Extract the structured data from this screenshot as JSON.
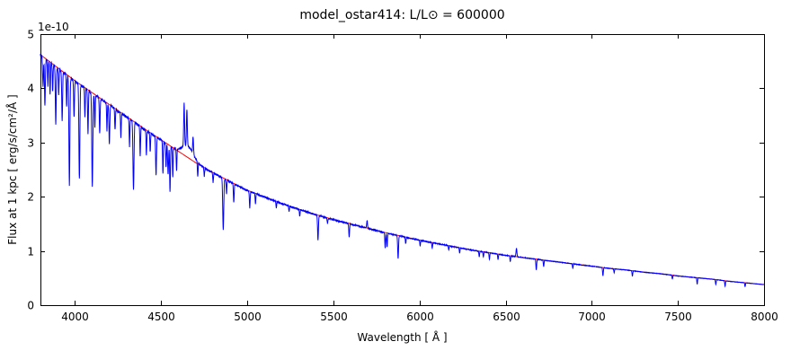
{
  "chart_data": {
    "type": "line",
    "title": "model_ostar414: L/L⊙ = 600000",
    "xlabel": "Wavelength [ Å ]",
    "ylabel": "Flux at 1 kpc [ erg/s/cm²/Å ]",
    "y_offset_label": "1e-10",
    "x_range": [
      3800,
      8000
    ],
    "y_range": [
      0,
      5
    ],
    "x_ticks": [
      4000,
      4500,
      5000,
      5500,
      6000,
      6500,
      7000,
      7500,
      8000
    ],
    "y_ticks": [
      0,
      1,
      2,
      3,
      4,
      5
    ],
    "grid": false,
    "legend": null,
    "colors": {
      "spectrum": "#0000ff",
      "continuum_fit": "#ff0000",
      "axes": "#000000",
      "background": "#ffffff"
    },
    "series": [
      {
        "name": "spectrum",
        "color_key": "spectrum",
        "description": "observed/model spectrum with absorption and emission lines"
      },
      {
        "name": "continuum_fit",
        "color_key": "continuum_fit",
        "description": "smooth continuum model"
      }
    ],
    "continuum": {
      "x": [
        3800,
        3900,
        4000,
        4100,
        4200,
        4300,
        4400,
        4500,
        4600,
        4700,
        4800,
        4900,
        5000,
        5100,
        5200,
        5300,
        5400,
        5500,
        5600,
        5700,
        5800,
        5900,
        6000,
        6100,
        6200,
        6300,
        6400,
        6500,
        6600,
        6700,
        6800,
        6900,
        7000,
        7100,
        7200,
        7300,
        7400,
        7500,
        7600,
        7700,
        7800,
        7900,
        8000
      ],
      "y": [
        4.62,
        4.38,
        4.14,
        3.92,
        3.7,
        3.48,
        3.26,
        3.05,
        2.84,
        2.63,
        2.45,
        2.28,
        2.12,
        2.0,
        1.88,
        1.77,
        1.67,
        1.58,
        1.5,
        1.42,
        1.34,
        1.27,
        1.2,
        1.14,
        1.08,
        1.02,
        0.97,
        0.92,
        0.88,
        0.84,
        0.8,
        0.76,
        0.72,
        0.68,
        0.65,
        0.61,
        0.58,
        0.54,
        0.51,
        0.48,
        0.44,
        0.41,
        0.38
      ]
    },
    "emission_bump": {
      "center": 4655,
      "sigma": 32,
      "amplitude": 0.22
    },
    "spectral_lines": [
      [
        3815,
        -0.55,
        2.5
      ],
      [
        3826,
        -0.85,
        2.5
      ],
      [
        3843,
        -0.45,
        2.0
      ],
      [
        3856,
        -0.6,
        2.0
      ],
      [
        3871,
        -0.5,
        2.0
      ],
      [
        3889,
        -1.05,
        2.5
      ],
      [
        3906,
        -0.45,
        2.0
      ],
      [
        3926,
        -0.9,
        2.5
      ],
      [
        3952,
        -0.6,
        2.0
      ],
      [
        3968,
        -2.0,
        2.8
      ],
      [
        3995,
        -0.7,
        2.2
      ],
      [
        4026,
        -1.75,
        2.8
      ],
      [
        4058,
        -0.55,
        2.0
      ],
      [
        4076,
        -0.8,
        2.2
      ],
      [
        4101,
        -1.7,
        3.0
      ],
      [
        4116,
        -0.6,
        2.0
      ],
      [
        4144,
        -0.65,
        2.2
      ],
      [
        4186,
        -0.5,
        2.0
      ],
      [
        4200,
        -0.7,
        2.5
      ],
      [
        4233,
        -0.4,
        2.0
      ],
      [
        4267,
        -0.45,
        2.0
      ],
      [
        4317,
        -0.5,
        2.0
      ],
      [
        4340,
        -1.25,
        3.0
      ],
      [
        4379,
        -0.55,
        2.0
      ],
      [
        4415,
        -0.45,
        2.0
      ],
      [
        4437,
        -0.35,
        2.0
      ],
      [
        4471,
        -0.7,
        2.5
      ],
      [
        4511,
        -0.6,
        2.0
      ],
      [
        4529,
        -0.45,
        2.0
      ],
      [
        4541,
        -0.55,
        2.5
      ],
      [
        4552,
        -0.85,
        2.2
      ],
      [
        4568,
        -0.55,
        2.0
      ],
      [
        4590,
        -0.4,
        2.0
      ],
      [
        4634,
        0.78,
        2.5
      ],
      [
        4650,
        0.66,
        2.5
      ],
      [
        4686,
        0.32,
        2.5
      ],
      [
        4713,
        -0.28,
        2.0
      ],
      [
        4751,
        -0.15,
        2.0
      ],
      [
        4802,
        -0.18,
        2.0
      ],
      [
        4861,
        -0.95,
        3.0
      ],
      [
        4880,
        -0.25,
        2.0
      ],
      [
        4922,
        -0.35,
        2.2
      ],
      [
        5015,
        -0.3,
        2.2
      ],
      [
        5048,
        -0.18,
        2.0
      ],
      [
        5169,
        -0.12,
        2.0
      ],
      [
        5243,
        -0.1,
        2.0
      ],
      [
        5305,
        -0.12,
        2.0
      ],
      [
        5411,
        -0.45,
        2.5
      ],
      [
        5466,
        -0.1,
        2.0
      ],
      [
        5592,
        -0.25,
        2.2
      ],
      [
        5696,
        0.14,
        2.5
      ],
      [
        5801,
        -0.28,
        2.2
      ],
      [
        5812,
        -0.25,
        2.2
      ],
      [
        5876,
        -0.42,
        2.5
      ],
      [
        5920,
        -0.12,
        2.0
      ],
      [
        6004,
        -0.1,
        2.0
      ],
      [
        6074,
        -0.1,
        2.0
      ],
      [
        6170,
        -0.08,
        2.0
      ],
      [
        6233,
        -0.1,
        2.0
      ],
      [
        6347,
        -0.1,
        2.0
      ],
      [
        6371,
        -0.09,
        2.0
      ],
      [
        6406,
        -0.12,
        2.0
      ],
      [
        6456,
        -0.1,
        2.0
      ],
      [
        6527,
        -0.1,
        2.0
      ],
      [
        6563,
        0.16,
        2.5
      ],
      [
        6678,
        -0.2,
        2.2
      ],
      [
        6721,
        -0.12,
        2.0
      ],
      [
        6890,
        -0.08,
        2.0
      ],
      [
        7065,
        -0.15,
        2.2
      ],
      [
        7130,
        -0.07,
        2.0
      ],
      [
        7236,
        -0.1,
        2.0
      ],
      [
        7468,
        -0.07,
        2.0
      ],
      [
        7612,
        -0.12,
        2.0
      ],
      [
        7720,
        -0.09,
        2.0
      ],
      [
        7774,
        -0.1,
        2.0
      ],
      [
        7890,
        -0.07,
        2.0
      ]
    ],
    "noise_amplitude": 0.012
  }
}
